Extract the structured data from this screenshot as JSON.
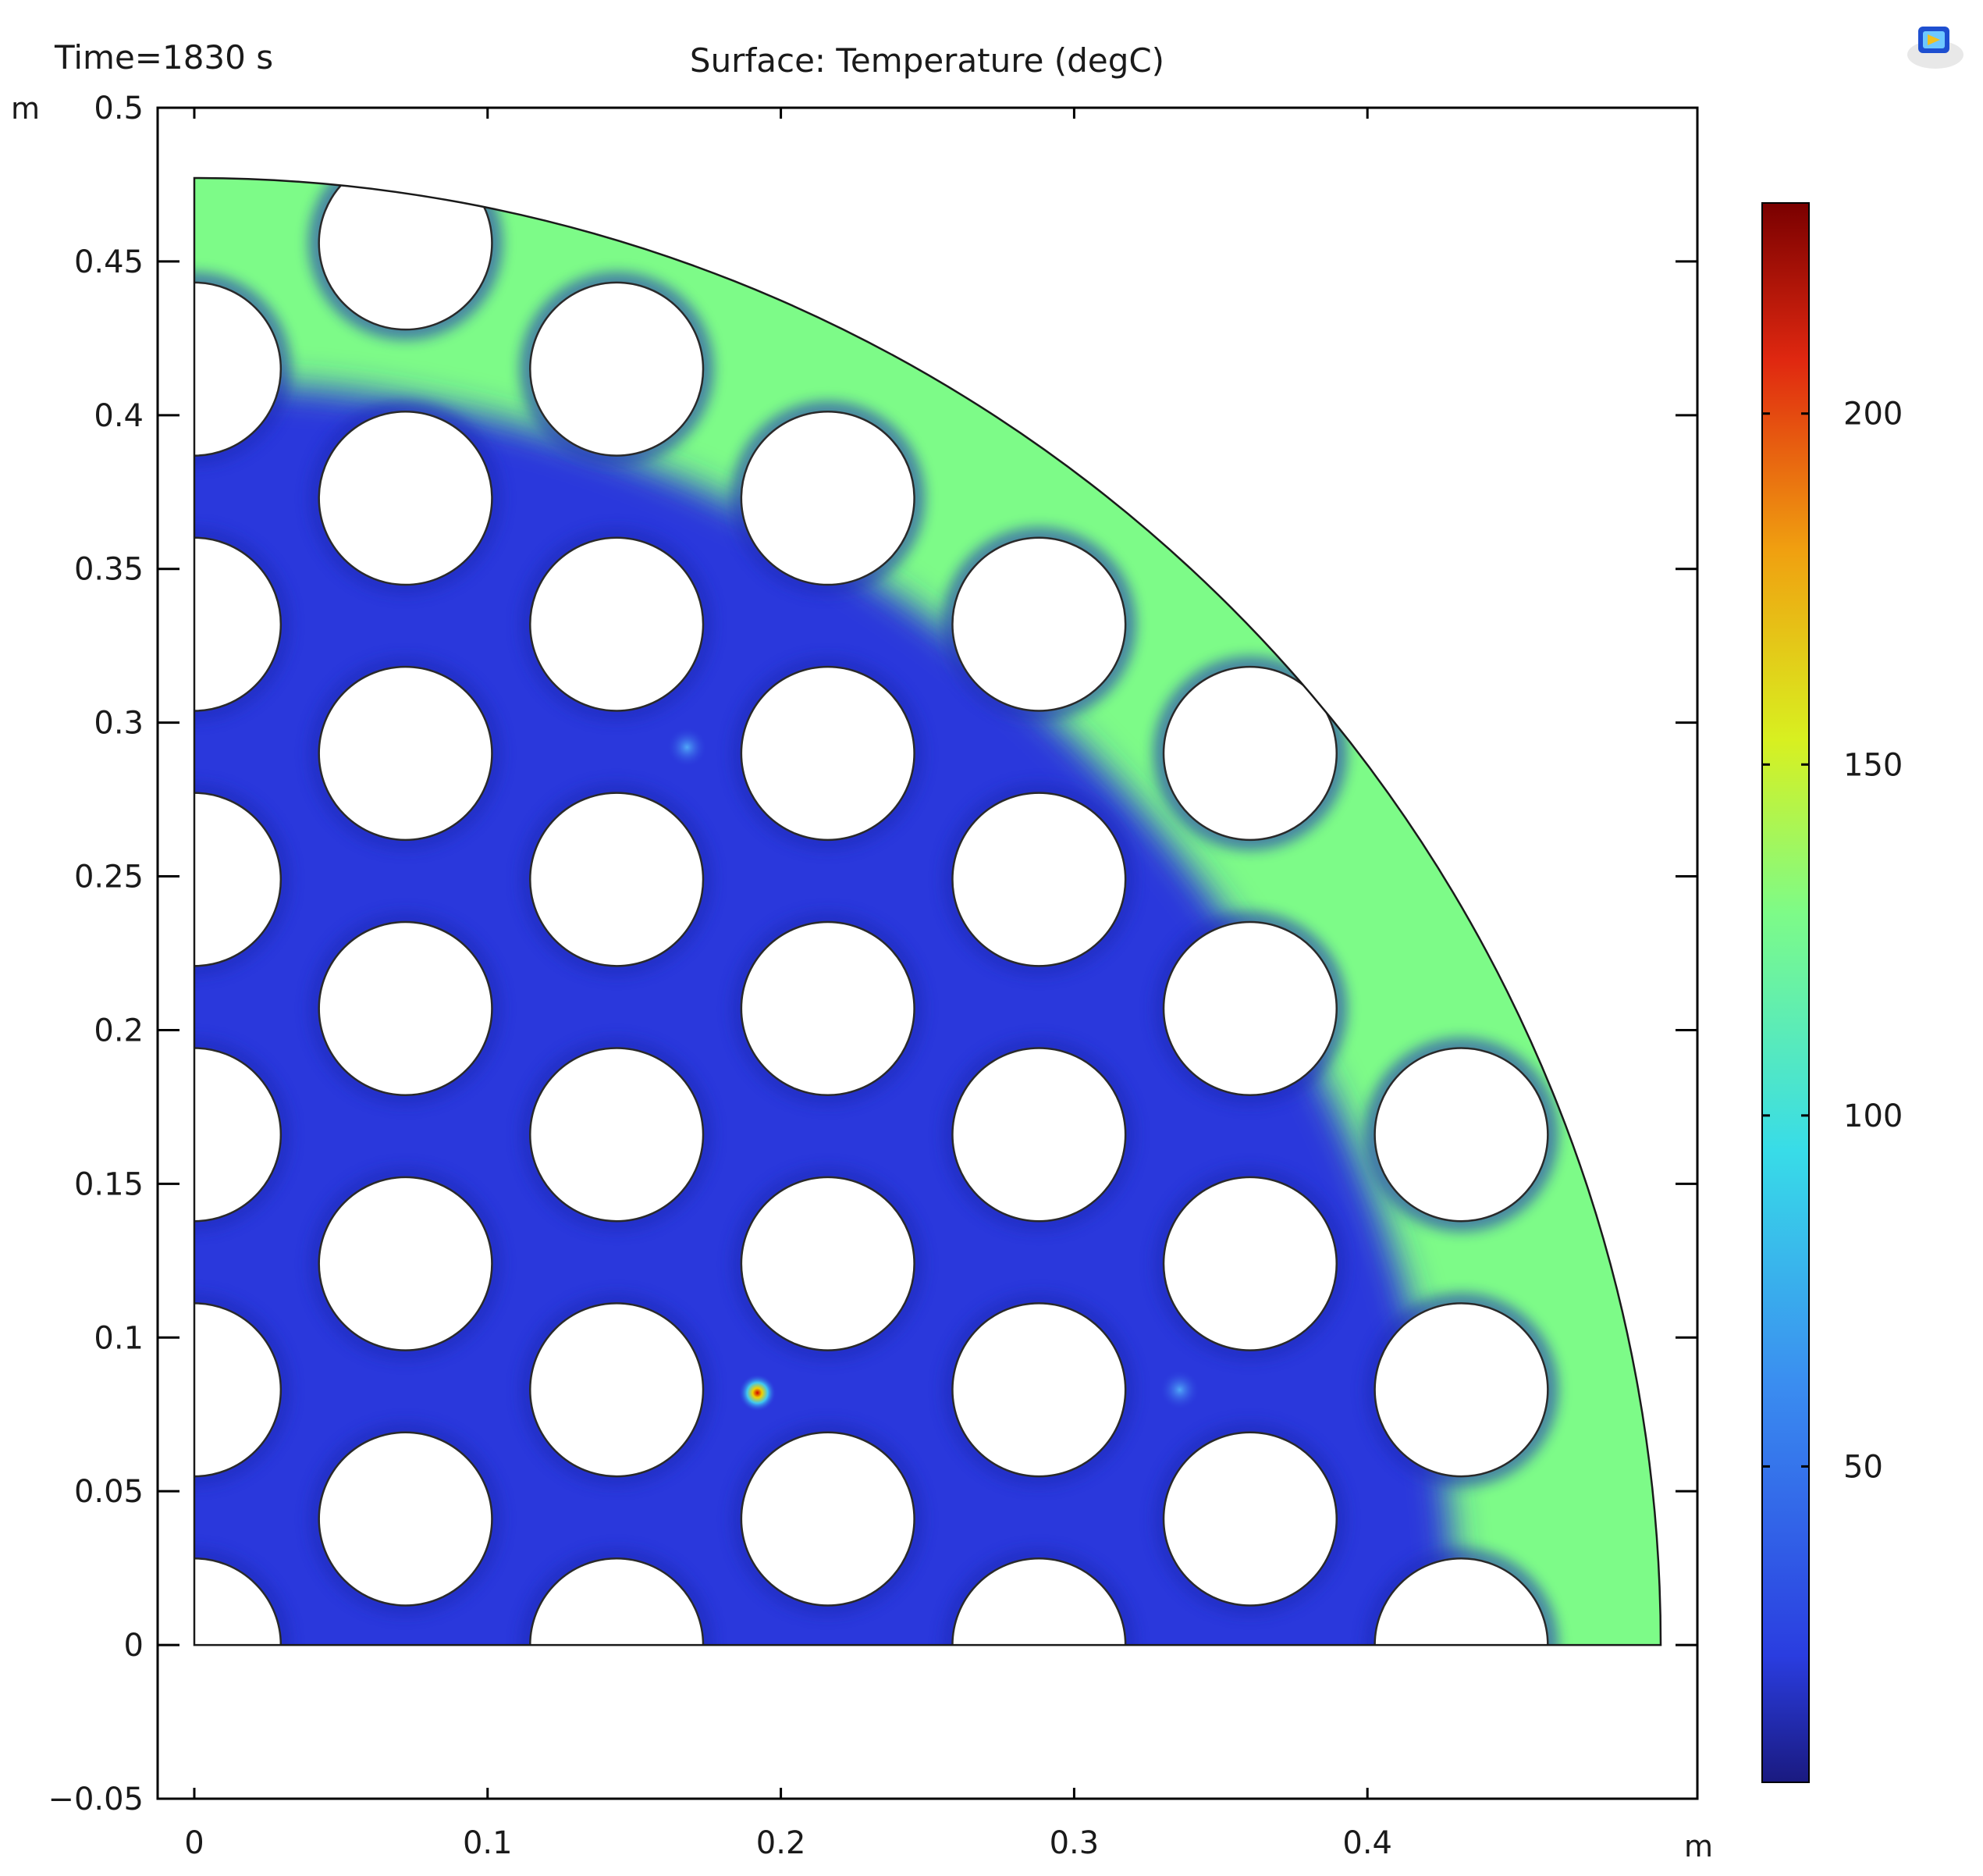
{
  "header": {
    "time_label": "Time=1830 s",
    "plot_title": "Surface: Temperature (degC)"
  },
  "chart_data": {
    "type": "heatmap",
    "title": "Surface: Temperature (degC)",
    "annotation": "Time=1830 s",
    "xlabel": "m",
    "ylabel": "m",
    "xlim": [
      -0.0125,
      0.5125
    ],
    "ylim": [
      -0.05,
      0.5
    ],
    "x_ticks": [
      0,
      0.1,
      0.2,
      0.3,
      0.4
    ],
    "x_tick_labels": [
      "0",
      "0.1",
      "0.2",
      "0.3",
      "0.4"
    ],
    "y_ticks": [
      -0.05,
      0,
      0.05,
      0.1,
      0.15,
      0.2,
      0.25,
      0.3,
      0.35,
      0.4,
      0.45,
      0.5
    ],
    "y_tick_labels": [
      "−0.05",
      "0",
      "0.05",
      "0.1",
      "0.15",
      "0.2",
      "0.25",
      "0.3",
      "0.35",
      "0.4",
      "0.45",
      "0.5"
    ],
    "domain": {
      "shape": "quarter-disc",
      "radius": 0.5
    },
    "holes": {
      "radius": 0.0295,
      "centers": [
        [
          0.072,
          0.041
        ],
        [
          0.072,
          0.124
        ],
        [
          0.072,
          0.207
        ],
        [
          0.072,
          0.29
        ],
        [
          0.072,
          0.373
        ],
        [
          0.072,
          0.456
        ],
        [
          0.144,
          0.083
        ],
        [
          0.144,
          0.166
        ],
        [
          0.144,
          0.249
        ],
        [
          0.144,
          0.332
        ],
        [
          0.144,
          0.415
        ],
        [
          0.216,
          0.041
        ],
        [
          0.216,
          0.124
        ],
        [
          0.216,
          0.207
        ],
        [
          0.216,
          0.29
        ],
        [
          0.216,
          0.373
        ],
        [
          0.288,
          0.083
        ],
        [
          0.288,
          0.166
        ],
        [
          0.288,
          0.249
        ],
        [
          0.288,
          0.332
        ],
        [
          0.36,
          0.041
        ],
        [
          0.36,
          0.124
        ],
        [
          0.36,
          0.207
        ],
        [
          0.36,
          0.29
        ],
        [
          0.432,
          0.083
        ],
        [
          0.432,
          0.166
        ],
        [
          0.0,
          0.0
        ],
        [
          0.0,
          0.083
        ],
        [
          0.0,
          0.166
        ],
        [
          0.0,
          0.249
        ],
        [
          0.0,
          0.332
        ],
        [
          0.0,
          0.415
        ],
        [
          0.144,
          0.0
        ],
        [
          0.288,
          0.0
        ],
        [
          0.432,
          0.0
        ]
      ]
    },
    "field": {
      "bulk_value": 30,
      "outer_rim_value": 110,
      "hot_spots": [
        {
          "x": 0.192,
          "y": 0.082,
          "value": 215
        },
        {
          "x": 0.168,
          "y": 0.292,
          "value": 75
        },
        {
          "x": 0.336,
          "y": 0.083,
          "value": 70
        }
      ]
    },
    "colorbar": {
      "min": 5,
      "max": 230,
      "ticks": [
        50,
        100,
        150,
        200
      ],
      "tick_labels": [
        "50",
        "100",
        "150",
        "200"
      ],
      "colormap": [
        "#1a1a80",
        "#2a3de0",
        "#3a8cf0",
        "#38dce8",
        "#d8f020",
        "#f0a010",
        "#e02810",
        "#7a0000"
      ]
    },
    "colors": {
      "cold": "#2a38dc",
      "rim": "#7dfb88",
      "hot": "#e01010",
      "frame": "#000000"
    }
  }
}
